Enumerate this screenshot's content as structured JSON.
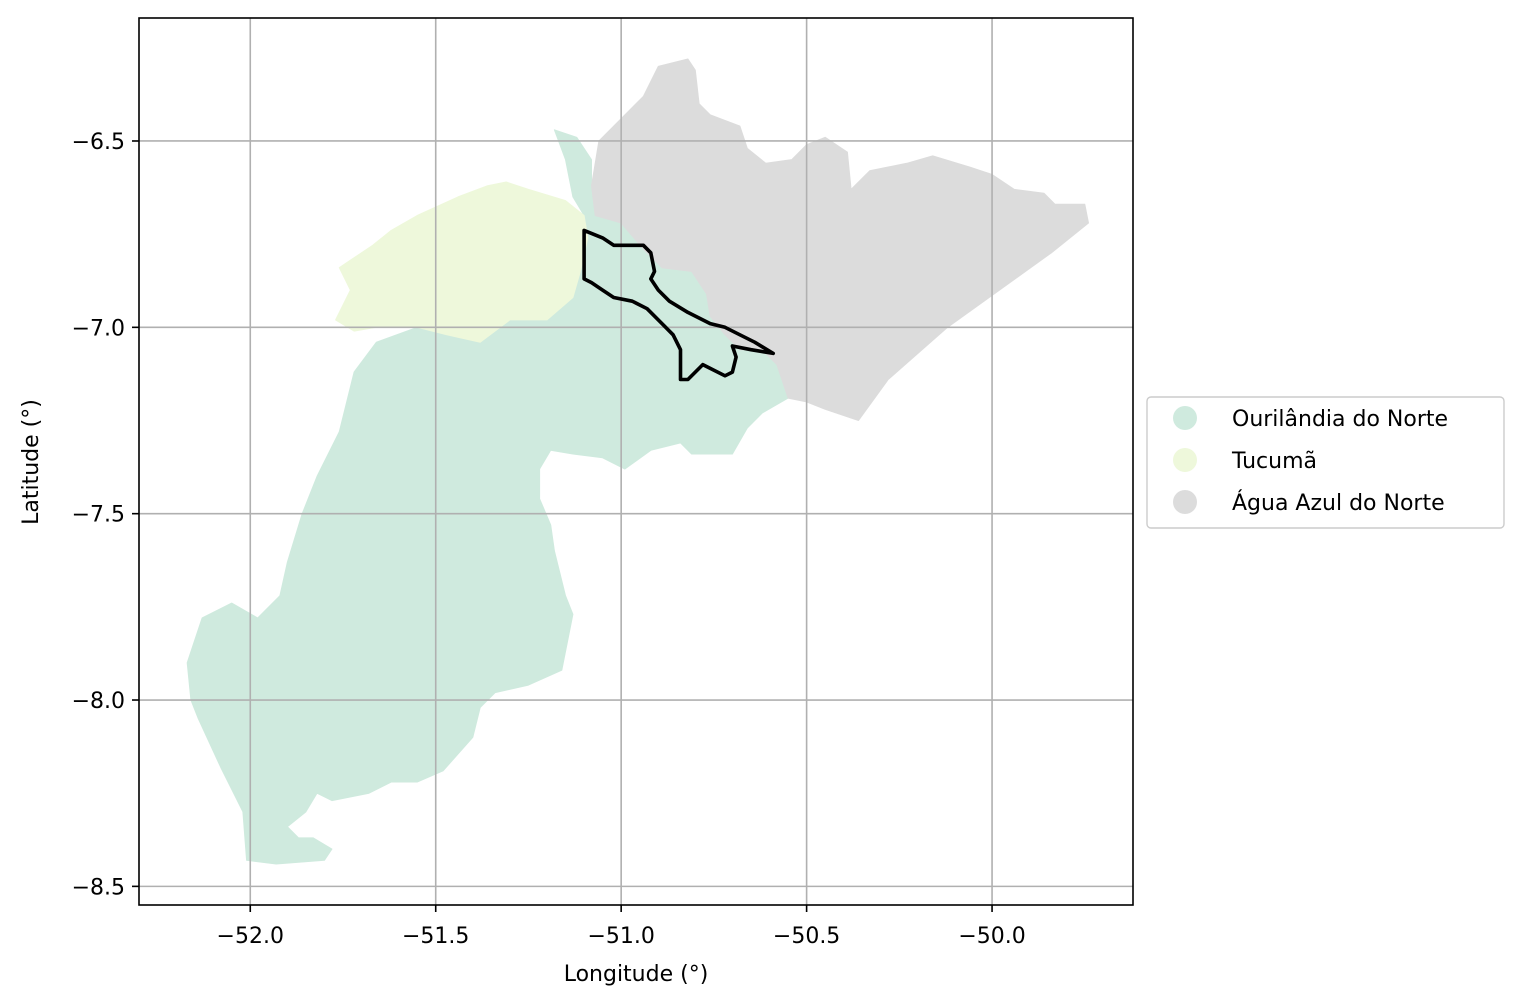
{
  "chart_data": {
    "type": "map",
    "xlabel": "Longitude (°)",
    "ylabel": "Latitude (°)",
    "xlim": [
      -52.3,
      -49.62
    ],
    "ylim": [
      -8.55,
      -6.17
    ],
    "grid": true,
    "x_ticks": [
      {
        "value": -52.0,
        "label": "−52.0"
      },
      {
        "value": -51.5,
        "label": "−51.5"
      },
      {
        "value": -51.0,
        "label": "−51.0"
      },
      {
        "value": -50.5,
        "label": "−50.5"
      },
      {
        "value": -50.0,
        "label": "−50.0"
      }
    ],
    "y_ticks": [
      {
        "value": -6.5,
        "label": "−6.5"
      },
      {
        "value": -7.0,
        "label": "−7.0"
      },
      {
        "value": -7.5,
        "label": "−7.5"
      },
      {
        "value": -8.0,
        "label": "−8.0"
      },
      {
        "value": -8.5,
        "label": "−8.5"
      }
    ],
    "legend_position": "right-center",
    "regions": [
      {
        "name": "Ourilândia do Norte",
        "color": "#cfeade",
        "polygon": [
          [
            -51.18,
            -6.47
          ],
          [
            -51.12,
            -6.49
          ],
          [
            -51.08,
            -6.55
          ],
          [
            -51.08,
            -6.62
          ],
          [
            -51.07,
            -6.7
          ],
          [
            -51.0,
            -6.72
          ],
          [
            -50.94,
            -6.79
          ],
          [
            -50.89,
            -6.84
          ],
          [
            -50.81,
            -6.85
          ],
          [
            -50.77,
            -6.91
          ],
          [
            -50.76,
            -6.97
          ],
          [
            -50.72,
            -7.02
          ],
          [
            -50.68,
            -7.06
          ],
          [
            -50.62,
            -7.06
          ],
          [
            -50.58,
            -7.1
          ],
          [
            -50.55,
            -7.19
          ],
          [
            -50.62,
            -7.23
          ],
          [
            -50.66,
            -7.27
          ],
          [
            -50.7,
            -7.34
          ],
          [
            -50.81,
            -7.34
          ],
          [
            -50.84,
            -7.31
          ],
          [
            -50.92,
            -7.33
          ],
          [
            -50.99,
            -7.38
          ],
          [
            -51.05,
            -7.35
          ],
          [
            -51.13,
            -7.34
          ],
          [
            -51.19,
            -7.33
          ],
          [
            -51.22,
            -7.38
          ],
          [
            -51.22,
            -7.46
          ],
          [
            -51.19,
            -7.53
          ],
          [
            -51.18,
            -7.6
          ],
          [
            -51.15,
            -7.72
          ],
          [
            -51.13,
            -7.77
          ],
          [
            -51.16,
            -7.92
          ],
          [
            -51.25,
            -7.96
          ],
          [
            -51.34,
            -7.98
          ],
          [
            -51.38,
            -8.02
          ],
          [
            -51.4,
            -8.1
          ],
          [
            -51.48,
            -8.19
          ],
          [
            -51.55,
            -8.22
          ],
          [
            -51.62,
            -8.22
          ],
          [
            -51.68,
            -8.25
          ],
          [
            -51.78,
            -8.27
          ],
          [
            -51.82,
            -8.25
          ],
          [
            -51.85,
            -8.3
          ],
          [
            -51.9,
            -8.34
          ],
          [
            -51.87,
            -8.37
          ],
          [
            -51.83,
            -8.37
          ],
          [
            -51.78,
            -8.4
          ],
          [
            -51.8,
            -8.43
          ],
          [
            -51.93,
            -8.44
          ],
          [
            -52.01,
            -8.43
          ],
          [
            -52.02,
            -8.3
          ],
          [
            -52.08,
            -8.18
          ],
          [
            -52.14,
            -8.05
          ],
          [
            -52.16,
            -8.0
          ],
          [
            -52.17,
            -7.9
          ],
          [
            -52.13,
            -7.78
          ],
          [
            -52.05,
            -7.74
          ],
          [
            -51.98,
            -7.78
          ],
          [
            -51.92,
            -7.72
          ],
          [
            -51.9,
            -7.63
          ],
          [
            -51.86,
            -7.5
          ],
          [
            -51.82,
            -7.4
          ],
          [
            -51.76,
            -7.28
          ],
          [
            -51.72,
            -7.12
          ],
          [
            -51.66,
            -7.04
          ],
          [
            -51.55,
            -7.0
          ],
          [
            -51.47,
            -7.02
          ],
          [
            -51.38,
            -7.04
          ],
          [
            -51.3,
            -6.98
          ],
          [
            -51.2,
            -6.98
          ],
          [
            -51.13,
            -6.92
          ],
          [
            -51.11,
            -6.85
          ],
          [
            -51.09,
            -6.76
          ],
          [
            -51.1,
            -6.7
          ],
          [
            -51.13,
            -6.65
          ],
          [
            -51.15,
            -6.55
          ],
          [
            -51.18,
            -6.47
          ]
        ]
      },
      {
        "name": "Tucumã",
        "color": "#eef8db",
        "polygon": [
          [
            -51.1,
            -6.7
          ],
          [
            -51.15,
            -6.66
          ],
          [
            -51.25,
            -6.63
          ],
          [
            -51.31,
            -6.61
          ],
          [
            -51.36,
            -6.62
          ],
          [
            -51.44,
            -6.65
          ],
          [
            -51.55,
            -6.7
          ],
          [
            -51.62,
            -6.74
          ],
          [
            -51.67,
            -6.78
          ],
          [
            -51.73,
            -6.82
          ],
          [
            -51.76,
            -6.84
          ],
          [
            -51.73,
            -6.9
          ],
          [
            -51.77,
            -6.98
          ],
          [
            -51.72,
            -7.01
          ],
          [
            -51.66,
            -7.0
          ],
          [
            -51.55,
            -7.0
          ],
          [
            -51.47,
            -7.02
          ],
          [
            -51.38,
            -7.04
          ],
          [
            -51.3,
            -6.98
          ],
          [
            -51.2,
            -6.98
          ],
          [
            -51.13,
            -6.92
          ],
          [
            -51.11,
            -6.85
          ],
          [
            -51.09,
            -6.76
          ],
          [
            -51.1,
            -6.7
          ]
        ]
      },
      {
        "name": "Água Azul do Norte",
        "color": "#dcdcdc",
        "polygon": [
          [
            -51.06,
            -6.5
          ],
          [
            -51.0,
            -6.44
          ],
          [
            -50.94,
            -6.38
          ],
          [
            -50.9,
            -6.3
          ],
          [
            -50.82,
            -6.28
          ],
          [
            -50.8,
            -6.31
          ],
          [
            -50.79,
            -6.4
          ],
          [
            -50.76,
            -6.43
          ],
          [
            -50.68,
            -6.46
          ],
          [
            -50.66,
            -6.52
          ],
          [
            -50.61,
            -6.56
          ],
          [
            -50.54,
            -6.55
          ],
          [
            -50.5,
            -6.51
          ],
          [
            -50.45,
            -6.49
          ],
          [
            -50.39,
            -6.53
          ],
          [
            -50.38,
            -6.63
          ],
          [
            -50.33,
            -6.58
          ],
          [
            -50.23,
            -6.56
          ],
          [
            -50.16,
            -6.54
          ],
          [
            -50.06,
            -6.57
          ],
          [
            -50.0,
            -6.59
          ],
          [
            -49.94,
            -6.63
          ],
          [
            -49.86,
            -6.64
          ],
          [
            -49.83,
            -6.67
          ],
          [
            -49.75,
            -6.67
          ],
          [
            -49.74,
            -6.72
          ],
          [
            -49.84,
            -6.8
          ],
          [
            -49.98,
            -6.9
          ],
          [
            -50.12,
            -7.0
          ],
          [
            -50.28,
            -7.14
          ],
          [
            -50.36,
            -7.25
          ],
          [
            -50.45,
            -7.22
          ],
          [
            -50.5,
            -7.2
          ],
          [
            -50.55,
            -7.19
          ],
          [
            -50.58,
            -7.1
          ],
          [
            -50.62,
            -7.06
          ],
          [
            -50.68,
            -7.06
          ],
          [
            -50.72,
            -7.02
          ],
          [
            -50.76,
            -6.97
          ],
          [
            -50.77,
            -6.91
          ],
          [
            -50.81,
            -6.85
          ],
          [
            -50.89,
            -6.84
          ],
          [
            -50.94,
            -6.79
          ],
          [
            -51.0,
            -6.72
          ],
          [
            -51.07,
            -6.7
          ],
          [
            -51.08,
            -6.62
          ],
          [
            -51.06,
            -6.5
          ]
        ]
      }
    ],
    "outline": {
      "color": "#000000",
      "polygon": [
        [
          -51.1,
          -6.74
        ],
        [
          -51.05,
          -6.76
        ],
        [
          -51.02,
          -6.78
        ],
        [
          -50.96,
          -6.78
        ],
        [
          -50.94,
          -6.78
        ],
        [
          -50.92,
          -6.8
        ],
        [
          -50.91,
          -6.85
        ],
        [
          -50.92,
          -6.87
        ],
        [
          -50.9,
          -6.9
        ],
        [
          -50.87,
          -6.93
        ],
        [
          -50.82,
          -6.96
        ],
        [
          -50.76,
          -6.99
        ],
        [
          -50.72,
          -7.0
        ],
        [
          -50.68,
          -7.02
        ],
        [
          -50.64,
          -7.04
        ],
        [
          -50.59,
          -7.07
        ],
        [
          -50.65,
          -7.06
        ],
        [
          -50.7,
          -7.05
        ],
        [
          -50.69,
          -7.08
        ],
        [
          -50.7,
          -7.12
        ],
        [
          -50.72,
          -7.13
        ],
        [
          -50.78,
          -7.1
        ],
        [
          -50.8,
          -7.12
        ],
        [
          -50.82,
          -7.14
        ],
        [
          -50.84,
          -7.14
        ],
        [
          -50.84,
          -7.06
        ],
        [
          -50.86,
          -7.02
        ],
        [
          -50.89,
          -6.99
        ],
        [
          -50.93,
          -6.95
        ],
        [
          -50.97,
          -6.93
        ],
        [
          -51.02,
          -6.92
        ],
        [
          -51.05,
          -6.9
        ],
        [
          -51.08,
          -6.88
        ],
        [
          -51.1,
          -6.87
        ],
        [
          -51.1,
          -6.74
        ]
      ]
    },
    "legend": [
      {
        "label": "Ourilândia do Norte",
        "color": "#cfeade"
      },
      {
        "label": "Tucumã",
        "color": "#eef8db"
      },
      {
        "label": "Água Azul do Norte",
        "color": "#dcdcdc"
      }
    ]
  }
}
